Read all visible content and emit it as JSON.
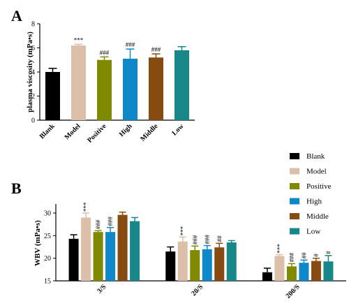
{
  "chart_data": [
    {
      "panel": "A",
      "type": "bar",
      "ylabel": "plasma viscosity (mPa•s)",
      "ylim": [
        0,
        8
      ],
      "yticks": [
        0,
        2,
        4,
        6,
        8
      ],
      "categories": [
        "Blank",
        "Model",
        "Positive",
        "High",
        "Middle",
        "Low"
      ],
      "values": [
        4.0,
        6.2,
        5.0,
        5.1,
        5.2,
        5.8
      ],
      "errors": [
        0.3,
        0.1,
        0.25,
        0.8,
        0.3,
        0.3
      ],
      "annotations": [
        "",
        "***",
        "###",
        "###",
        "###",
        ""
      ],
      "colors": [
        "#000000",
        "#dbbfa8",
        "#7f8a00",
        "#0e88c8",
        "#874a10",
        "#18878a"
      ]
    },
    {
      "panel": "B",
      "type": "bar",
      "ylabel": "WBV (mPa•s)",
      "ylim": [
        15,
        32
      ],
      "yticks": [
        15,
        20,
        25,
        30
      ],
      "groups": [
        "3/S",
        "20/S",
        "200/S"
      ],
      "series": [
        {
          "name": "Blank",
          "values": [
            24.3,
            21.5,
            16.9
          ],
          "errors": [
            0.9,
            1.0,
            0.9
          ],
          "annotations": [
            "",
            "",
            ""
          ]
        },
        {
          "name": "Model",
          "values": [
            29.0,
            23.7,
            20.5
          ],
          "errors": [
            1.0,
            1.0,
            0.3
          ],
          "annotations": [
            "***",
            "***",
            "***"
          ]
        },
        {
          "name": "Positive",
          "values": [
            25.8,
            21.8,
            18.2
          ],
          "errors": [
            0.3,
            0.9,
            0.6
          ],
          "annotations": [
            "###",
            "###",
            "###"
          ]
        },
        {
          "name": "High",
          "values": [
            25.8,
            22.0,
            19.0
          ],
          "errors": [
            1.0,
            0.8,
            0.6
          ],
          "annotations": [
            "###",
            "###",
            "##"
          ]
        },
        {
          "name": "Middle",
          "values": [
            29.6,
            22.4,
            19.4
          ],
          "errors": [
            0.6,
            0.9,
            0.6
          ],
          "annotations": [
            "",
            "##",
            "#"
          ]
        },
        {
          "name": "Low",
          "values": [
            28.2,
            23.5,
            19.3
          ],
          "errors": [
            0.8,
            0.4,
            1.3
          ],
          "annotations": [
            "",
            "",
            "#"
          ]
        }
      ],
      "colors": [
        "#000000",
        "#dbbfa8",
        "#7f8a00",
        "#0e88c8",
        "#874a10",
        "#18878a"
      ],
      "legend_position": "top-right"
    }
  ],
  "labels": {
    "panelA": "A",
    "panelB": "B"
  }
}
